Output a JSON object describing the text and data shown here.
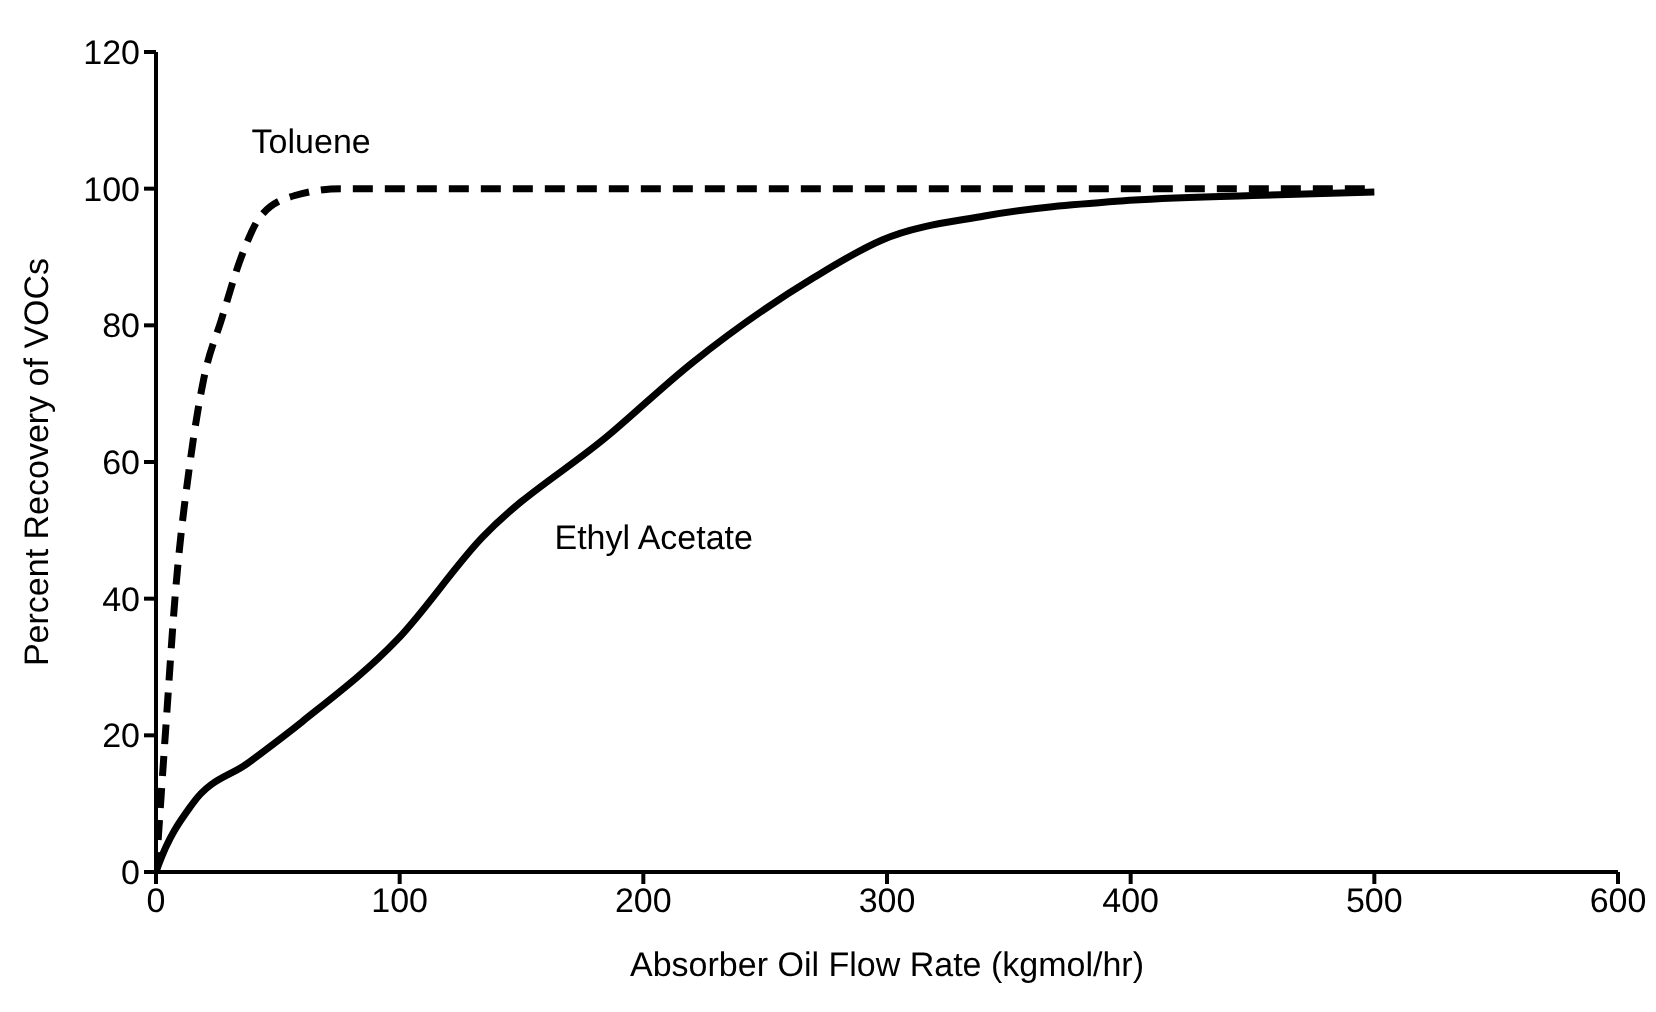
{
  "chart_data": {
    "type": "line",
    "xlabel": "Absorber Oil Flow Rate (kgmol/hr)",
    "ylabel": "Percent  Recovery of VOCs",
    "xlim": [
      0,
      600
    ],
    "xticks": [
      0,
      100,
      200,
      300,
      400,
      500,
      600
    ],
    "ylim": [
      0,
      120
    ],
    "yticks": [
      0,
      20,
      40,
      60,
      80,
      100,
      120
    ],
    "grid": false,
    "legend": false,
    "marker": "none",
    "series": [
      {
        "name": "Toluene",
        "color": "#000000",
        "line_style": "dashed",
        "x": [
          0,
          4,
          8,
          14,
          19.5,
          27,
          35,
          43,
          57,
          76,
          150,
          300,
          500
        ],
        "values": [
          0,
          21,
          41,
          60,
          72,
          81,
          90,
          96,
          99,
          100,
          100,
          100,
          100
        ]
      },
      {
        "name": "Ethyl Acetate",
        "color": "#000000",
        "line_style": "solid",
        "x": [
          0,
          1,
          15,
          38,
          60,
          99,
          134,
          186,
          220,
          270,
          298,
          340,
          396,
          450,
          500
        ],
        "values": [
          0,
          1,
          10,
          16,
          22,
          34,
          49,
          64,
          74.5,
          87,
          92.5,
          96,
          98.2,
          99,
          99.5
        ]
      }
    ]
  }
}
